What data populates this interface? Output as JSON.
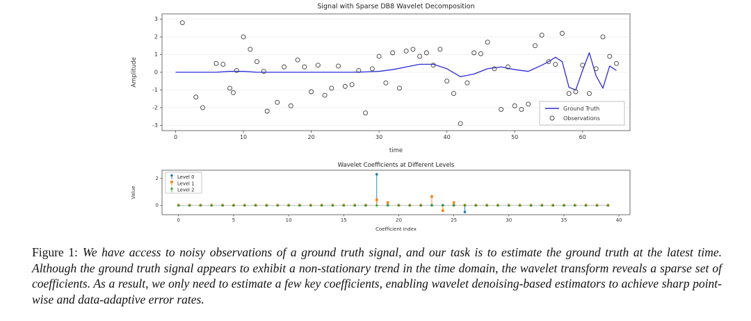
{
  "caption": {
    "label": "Figure 1:",
    "text": "We have access to noisy observations of a ground truth signal, and our task is to estimate the ground truth at the latest time. Although the ground truth signal appears to exhibit a non-stationary trend in the time domain, the wavelet transform reveals a sparse set of coefficients. As a result, we only need to estimate a few key coefficients, enabling wavelet denoising-based estimators to achieve sharp point-wise and data-adaptive error rates."
  },
  "chart_data": [
    {
      "type": "line",
      "title": "Signal with Sparse DB8 Wavelet Decomposition",
      "xlabel": "time",
      "ylabel": "Amplitude",
      "xlim": [
        -2,
        67
      ],
      "ylim": [
        -3.3,
        3.3
      ],
      "xticks": [
        0,
        10,
        20,
        30,
        40,
        50,
        60
      ],
      "yticks": [
        -3,
        -2,
        -1,
        0,
        1,
        2,
        3
      ],
      "legend": [
        {
          "name": "Ground Truth",
          "type": "line",
          "color": "#2a2ad9"
        },
        {
          "name": "Observations",
          "type": "open-circle",
          "color": "#3d3d3d"
        }
      ],
      "ground_truth": {
        "x": [
          0,
          2,
          4,
          6,
          8,
          10,
          12,
          14,
          16,
          18,
          20,
          22,
          24,
          26,
          28,
          30,
          32,
          34,
          36,
          38,
          40,
          42,
          44,
          46,
          48,
          50,
          52,
          54,
          55,
          56,
          57,
          58,
          59,
          60,
          61,
          62,
          63,
          64,
          65
        ],
        "y": [
          0,
          0,
          0,
          0,
          0.05,
          0.05,
          0,
          0,
          0,
          0,
          0,
          0,
          0,
          0,
          0.02,
          0.05,
          0.15,
          0.3,
          0.45,
          0.45,
          0.2,
          -0.25,
          -0.1,
          0.2,
          0.3,
          0.15,
          0.05,
          0.4,
          0.6,
          0.85,
          0.6,
          -0.85,
          -1.0,
          0.1,
          1.1,
          -0.2,
          -0.9,
          0.35,
          0.1
        ]
      },
      "observations": {
        "x": [
          1,
          3,
          4,
          6,
          7,
          8,
          8.5,
          9,
          10,
          11,
          12,
          13,
          13.5,
          15,
          16,
          17,
          18,
          19,
          20,
          21,
          22,
          23,
          24,
          25,
          26,
          27,
          28,
          29,
          30,
          31,
          32,
          33,
          34,
          35,
          36,
          37,
          38,
          39,
          40,
          41,
          42,
          43,
          44,
          45,
          46,
          47,
          48,
          49,
          50,
          51,
          52,
          53,
          54,
          55,
          56,
          57,
          58,
          59,
          60,
          61,
          62,
          63,
          64,
          65
        ],
        "y": [
          2.8,
          -1.4,
          -2.0,
          0.5,
          0.45,
          -0.9,
          -1.15,
          0.1,
          2.0,
          1.3,
          0.6,
          0.05,
          -2.2,
          -1.7,
          0.3,
          -1.9,
          0.7,
          0.3,
          -1.1,
          0.4,
          -1.3,
          -0.9,
          0.35,
          -0.8,
          -0.7,
          0.1,
          -2.3,
          0.2,
          0.9,
          -0.6,
          1.1,
          -0.9,
          1.2,
          1.3,
          0.9,
          1.1,
          0.4,
          1.3,
          -0.5,
          -1.2,
          -2.9,
          -0.6,
          1.1,
          1.05,
          1.7,
          0.2,
          -2.1,
          0.3,
          -1.9,
          -2.1,
          -1.8,
          1.5,
          2.1,
          0.6,
          0.45,
          2.2,
          -1.2,
          -1.1,
          0.4,
          -1.2,
          0.2,
          2.0,
          0.9,
          0.5
        ]
      }
    },
    {
      "type": "stem",
      "title": "Wavelet Coefficients at Different Levels",
      "xlabel": "Coefficient Index",
      "ylabel": "Value",
      "xlim": [
        -1.5,
        41
      ],
      "ylim": [
        -0.7,
        2.6
      ],
      "xticks": [
        0,
        5,
        10,
        15,
        20,
        25,
        30,
        35,
        40
      ],
      "yticks": [
        0,
        2
      ],
      "series": [
        {
          "name": "Level 0",
          "color": "#1f77b4",
          "marker": "circle",
          "values": [
            0,
            0,
            0,
            0,
            0,
            0,
            0,
            0,
            0,
            0,
            0,
            0,
            0,
            0,
            0,
            0,
            0,
            0,
            2.3,
            0,
            0,
            0,
            0,
            0,
            0,
            0,
            -0.5,
            0,
            0,
            0,
            0,
            0,
            0,
            0,
            0,
            0,
            0,
            0,
            0,
            0
          ]
        },
        {
          "name": "Level 1",
          "color": "#ff7f0e",
          "marker": "square",
          "values": [
            0,
            0,
            0,
            0,
            0,
            0,
            0,
            0,
            0,
            0,
            0,
            0,
            0,
            0,
            0,
            0,
            0,
            0,
            0.4,
            0.2,
            0,
            0,
            0,
            0.65,
            -0.4,
            0.2,
            0,
            0,
            0,
            0,
            0,
            0,
            0,
            0,
            0,
            0,
            0,
            0,
            0,
            0
          ]
        },
        {
          "name": "Level 2",
          "color": "#2ca02c",
          "marker": "triangle",
          "values": [
            0,
            0,
            0,
            0,
            0,
            0,
            0,
            0,
            0,
            0,
            0,
            0,
            0,
            0,
            0,
            0,
            0,
            0,
            0,
            0,
            0,
            0,
            0,
            0,
            0,
            0,
            0,
            0,
            0,
            0,
            0,
            0,
            0,
            0,
            0,
            0,
            0,
            0,
            0,
            0
          ]
        }
      ]
    }
  ]
}
